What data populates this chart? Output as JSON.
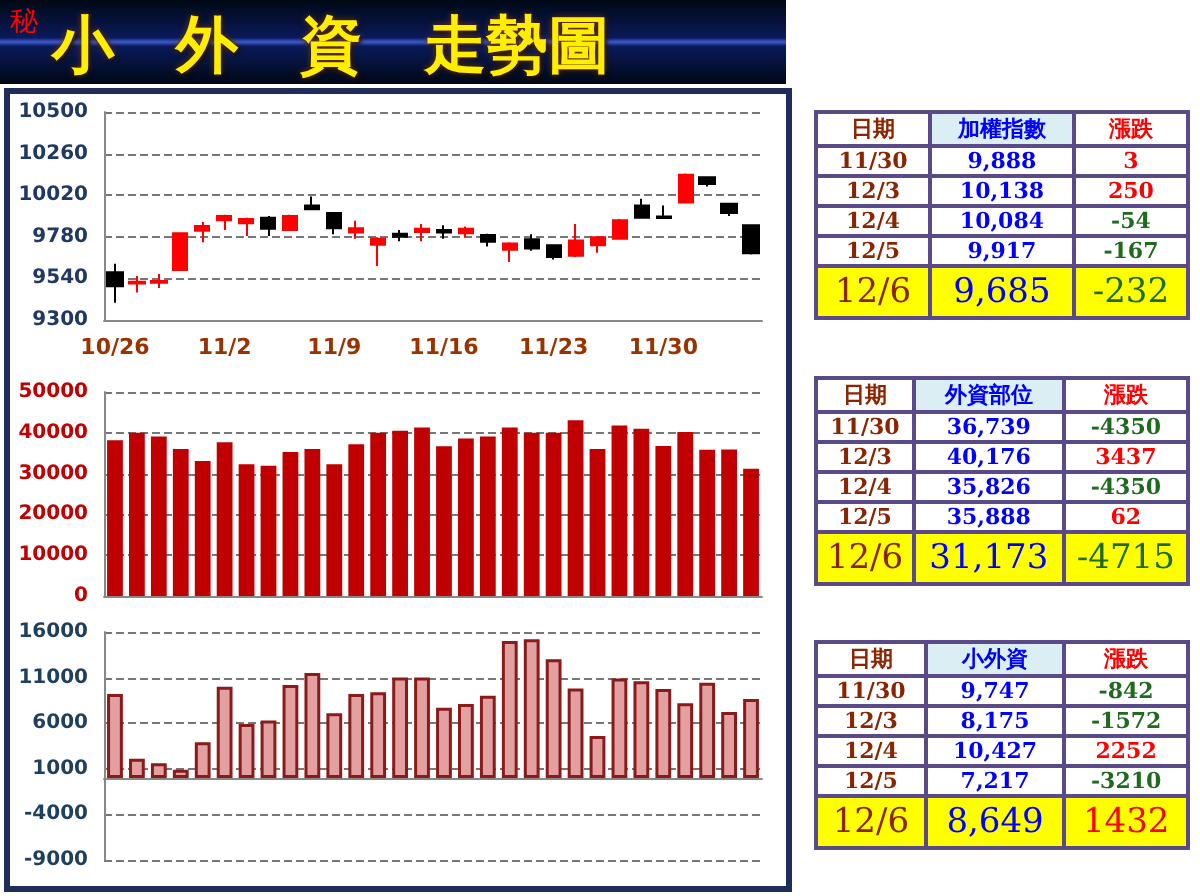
{
  "chart_data": [
    {
      "type": "candlestick",
      "title": "小　外　資　走勢圖",
      "subtitle": "秘",
      "categories": [
        "10/26",
        null,
        null,
        null,
        null,
        "11/2",
        null,
        null,
        null,
        null,
        "11/9",
        null,
        null,
        null,
        null,
        "11/16",
        null,
        null,
        null,
        null,
        "11/23",
        null,
        null,
        null,
        null,
        "11/30",
        null,
        null,
        null,
        null
      ],
      "ohlc": [
        [
          9575,
          9625,
          9399,
          9494
        ],
        [
          9510,
          9554,
          9459,
          9520
        ],
        [
          9515,
          9565,
          9484,
          9525
        ],
        [
          9589,
          9801,
          9589,
          9801
        ],
        [
          9815,
          9865,
          9748,
          9843
        ],
        [
          9875,
          9907,
          9819,
          9900
        ],
        [
          9858,
          9890,
          9784,
          9882
        ],
        [
          9890,
          9900,
          9784,
          9826
        ],
        [
          9819,
          9907,
          9819,
          9900
        ],
        [
          9960,
          10013,
          9939,
          9939
        ],
        [
          9918,
          9918,
          9794,
          9830
        ],
        [
          9805,
          9872,
          9769,
          9830
        ],
        [
          9734,
          9777,
          9611,
          9769
        ],
        [
          9798,
          9819,
          9755,
          9780
        ],
        [
          9808,
          9854,
          9755,
          9826
        ],
        [
          9819,
          9847,
          9769,
          9805
        ],
        [
          9801,
          9840,
          9777,
          9826
        ],
        [
          9791,
          9798,
          9724,
          9752
        ],
        [
          9706,
          9748,
          9635,
          9741
        ],
        [
          9766,
          9794,
          9699,
          9713
        ],
        [
          9731,
          9731,
          9649,
          9664
        ],
        [
          9671,
          9854,
          9664,
          9759
        ],
        [
          9731,
          9777,
          9688,
          9777
        ],
        [
          9769,
          9882,
          9769,
          9875
        ],
        [
          9960,
          9999,
          9890,
          9890
        ],
        [
          9897,
          9960,
          9886,
          9888
        ],
        [
          9978,
          10145,
          9978,
          10138
        ],
        [
          10124,
          10124,
          10070,
          10084
        ],
        [
          9971,
          9971,
          9900,
          9917
        ],
        [
          9847,
          9847,
          9678,
          9685
        ]
      ],
      "colors": [
        "#000000",
        "#ff0000",
        "#ff0000",
        "#ff0000",
        "#ff0000",
        "#ff0000",
        "#ff0000",
        "#000000",
        "#ff0000",
        "#000000",
        "#000000",
        "#ff0000",
        "#ff0000",
        "#000000",
        "#ff0000",
        "#000000",
        "#ff0000",
        "#000000",
        "#ff0000",
        "#000000",
        "#000000",
        "#ff0000",
        "#ff0000",
        "#ff0000",
        "#000000",
        "#000000",
        "#ff0000",
        "#000000",
        "#000000",
        "#000000"
      ],
      "ylim": [
        9300,
        10500
      ],
      "yticks": [
        9300,
        9540,
        9780,
        10020,
        10260,
        10500
      ],
      "grid": "y"
    },
    {
      "type": "bar",
      "categories": [
        null,
        null,
        null,
        null,
        null,
        null,
        null,
        null,
        null,
        null,
        null,
        null,
        null,
        null,
        null,
        null,
        null,
        null,
        null,
        null,
        null,
        null,
        null,
        null,
        null,
        null,
        null,
        null,
        null,
        null
      ],
      "values": [
        38200,
        40000,
        39100,
        36000,
        33100,
        37700,
        32300,
        31900,
        35300,
        36000,
        32300,
        37200,
        40000,
        40500,
        41300,
        36700,
        38600,
        39100,
        41300,
        40000,
        40000,
        43100,
        36000,
        41800,
        41000,
        36739,
        40176,
        35826,
        35888,
        31173
      ],
      "color": "#c00000",
      "ylim": [
        0,
        50000
      ],
      "yticks": [
        0,
        10000,
        20000,
        30000,
        40000,
        50000
      ],
      "grid": "y"
    },
    {
      "type": "bar",
      "categories": [
        null,
        null,
        null,
        null,
        null,
        null,
        null,
        null,
        null,
        null,
        null,
        null,
        null,
        null,
        null,
        null,
        null,
        null,
        null,
        null,
        null,
        null,
        null,
        null,
        null,
        null,
        null,
        null,
        null,
        null
      ],
      "values": [
        9200,
        2100,
        1600,
        900,
        3900,
        10000,
        5900,
        6300,
        10200,
        11500,
        7100,
        9200,
        9400,
        11000,
        11000,
        7700,
        8100,
        9000,
        15000,
        15200,
        13000,
        9800,
        4600,
        10900,
        10600,
        9747,
        8175,
        10427,
        7217,
        8649
      ],
      "color": "#e3a0a0",
      "ylim": [
        -9000,
        16000
      ],
      "yticks": [
        -9000,
        -4000,
        1000,
        6000,
        11000,
        16000
      ],
      "grid": "y"
    },
    {
      "type": "other",
      "categories": [
        "日期",
        "加權指數",
        "漲跌"
      ],
      "y_categories": [
        "11/30",
        "12/3",
        "12/4",
        "12/5",
        "12/6"
      ],
      "cell_labels": [
        [
          "9,888",
          "3"
        ],
        [
          "10,138",
          "250"
        ],
        [
          "10,084",
          "-54"
        ],
        [
          "9,917",
          "-167"
        ],
        [
          "9,685",
          "-232"
        ]
      ]
    },
    {
      "type": "other",
      "categories": [
        "日期",
        "外資部位",
        "漲跌"
      ],
      "y_categories": [
        "11/30",
        "12/3",
        "12/4",
        "12/5",
        "12/6"
      ],
      "cell_labels": [
        [
          "36,739",
          "-4350"
        ],
        [
          "40,176",
          "3437"
        ],
        [
          "35,826",
          "-4350"
        ],
        [
          "35,888",
          "62"
        ],
        [
          "31,173",
          "-4715"
        ]
      ]
    },
    {
      "type": "other",
      "categories": [
        "日期",
        "小外資",
        "漲跌"
      ],
      "y_categories": [
        "11/30",
        "12/3",
        "12/4",
        "12/5",
        "12/6"
      ],
      "cell_labels": [
        [
          "9,747",
          "-842"
        ],
        [
          "8,175",
          "-1572"
        ],
        [
          "10,427",
          "2252"
        ],
        [
          "7,217",
          "-3210"
        ],
        [
          "8,649",
          "1432"
        ]
      ]
    }
  ]
}
